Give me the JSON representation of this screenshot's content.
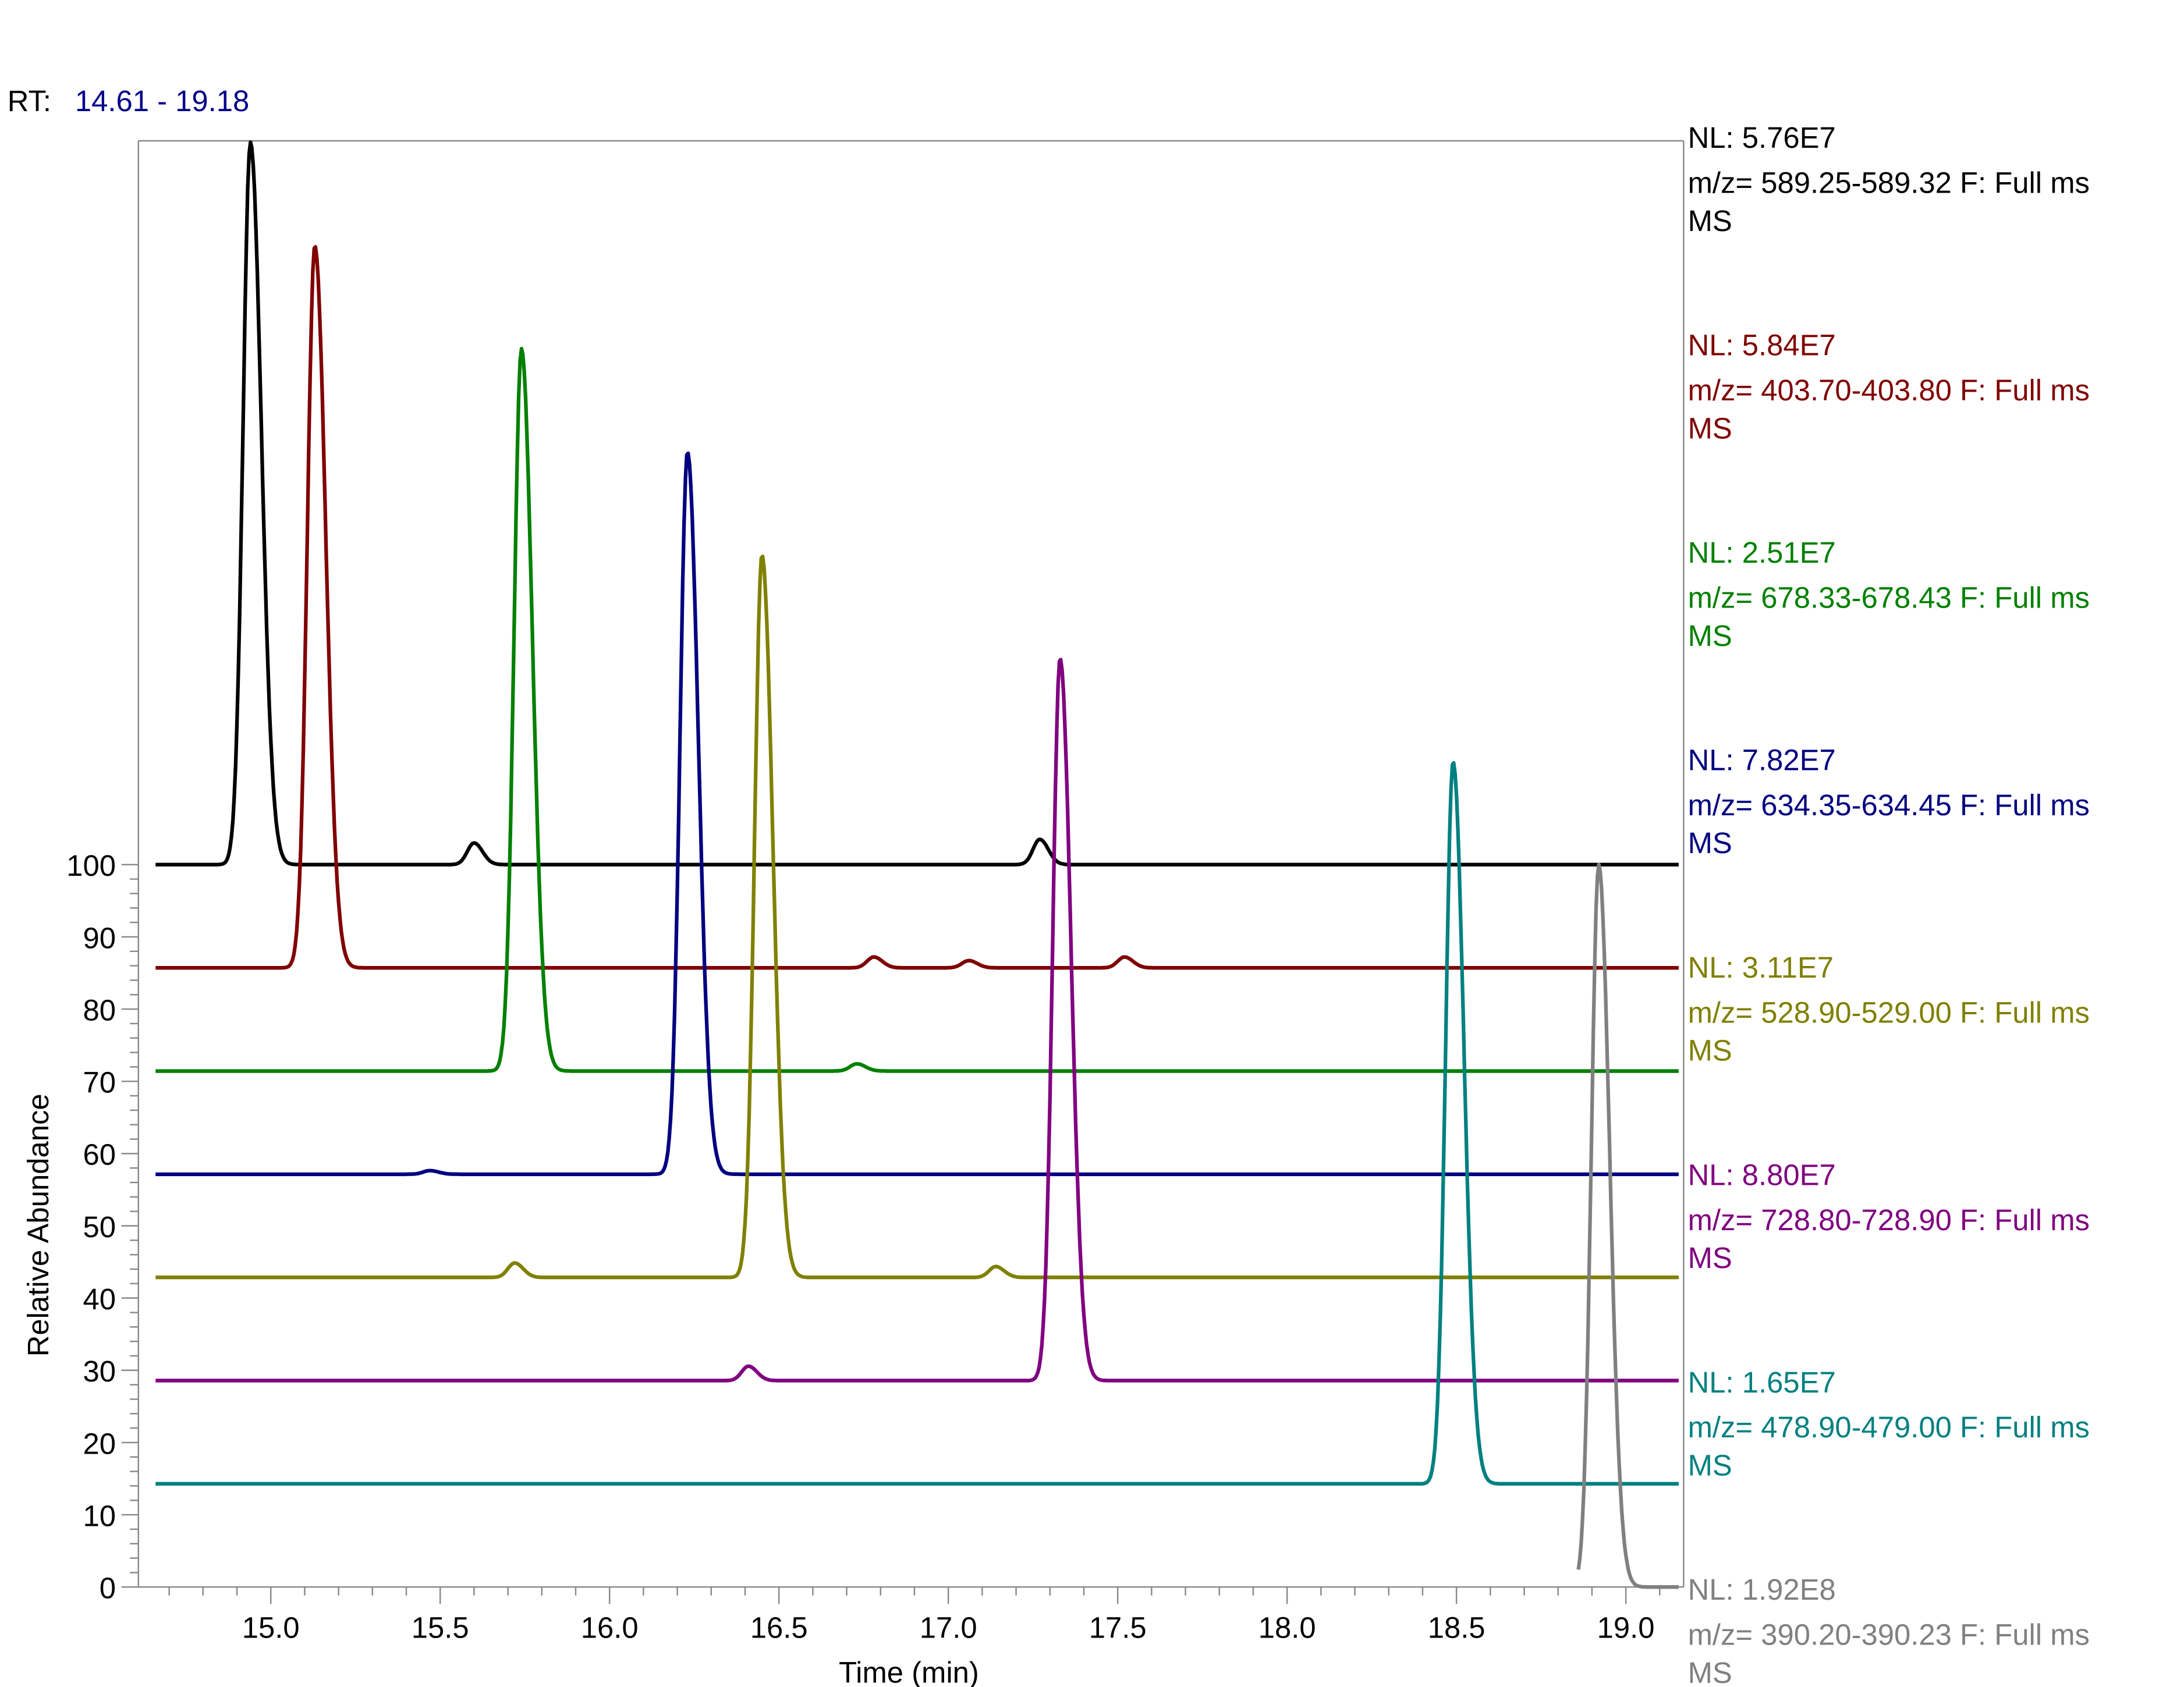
{
  "header": {
    "rt_label": "RT:",
    "rt_range": "14.61 - 19.18"
  },
  "chart_data": {
    "type": "line",
    "subtype": "stacked chromatograms",
    "xlabel": "Time (min)",
    "ylabel": "Relative Abundance",
    "xlim": [
      14.61,
      19.18
    ],
    "ylim": [
      0,
      100
    ],
    "xticks": [
      "15.0",
      "15.5",
      "16.0",
      "16.5",
      "17.0",
      "17.5",
      "18.0",
      "18.5",
      "19.0"
    ],
    "yticks": [
      "0",
      "10",
      "20",
      "30",
      "40",
      "50",
      "60",
      "70",
      "80",
      "90",
      "100"
    ],
    "grid": false,
    "legend_placement": "right",
    "series": [
      {
        "nl": "NL: 5.76E7",
        "mz": "m/z= 589.25-589.32 F: Full ms",
        "scan": "MS",
        "color": "#000000",
        "peaks": [
          {
            "rt": 14.94,
            "height": 100
          },
          {
            "rt": 15.6,
            "height": 3
          },
          {
            "rt": 17.27,
            "height": 3.5
          }
        ]
      },
      {
        "nl": "NL: 5.84E7",
        "mz": "m/z= 403.70-403.80 F: Full ms",
        "scan": "MS",
        "color": "#800000",
        "peaks": [
          {
            "rt": 15.13,
            "height": 100
          },
          {
            "rt": 16.78,
            "height": 1.5
          },
          {
            "rt": 17.06,
            "height": 1
          },
          {
            "rt": 17.52,
            "height": 1.5
          }
        ]
      },
      {
        "nl": "NL: 2.51E7",
        "mz": "m/z= 678.33-678.43 F: Full ms",
        "scan": "MS",
        "color": "#008000",
        "peaks": [
          {
            "rt": 15.74,
            "height": 100
          },
          {
            "rt": 16.73,
            "height": 1
          }
        ]
      },
      {
        "nl": "NL: 7.82E7",
        "mz": "m/z= 634.35-634.45 F: Full ms",
        "scan": "MS",
        "color": "#000080",
        "peaks": [
          {
            "rt": 16.23,
            "height": 100
          },
          {
            "rt": 15.47,
            "height": 0.5
          }
        ]
      },
      {
        "nl": "NL: 3.11E7",
        "mz": "m/z= 528.90-529.00 F: Full ms",
        "scan": "MS",
        "color": "#808000",
        "peaks": [
          {
            "rt": 16.45,
            "height": 100
          },
          {
            "rt": 15.72,
            "height": 2
          },
          {
            "rt": 17.14,
            "height": 1.5
          }
        ]
      },
      {
        "nl": "NL: 8.80E7",
        "mz": "m/z= 728.80-728.90 F: Full ms",
        "scan": "MS",
        "color": "#800080",
        "peaks": [
          {
            "rt": 17.33,
            "height": 100
          },
          {
            "rt": 16.41,
            "height": 2
          }
        ]
      },
      {
        "nl": "NL: 1.65E7",
        "mz": "m/z= 478.90-479.00 F: Full ms",
        "scan": "MS",
        "color": "#008080",
        "peaks": [
          {
            "rt": 18.49,
            "height": 100
          }
        ]
      },
      {
        "nl": "NL: 1.92E8",
        "mz": "m/z= 390.20-390.23 F: Full ms",
        "scan": "MS",
        "color": "#808080",
        "peaks": [
          {
            "rt": 18.92,
            "height": 100
          }
        ]
      }
    ]
  }
}
